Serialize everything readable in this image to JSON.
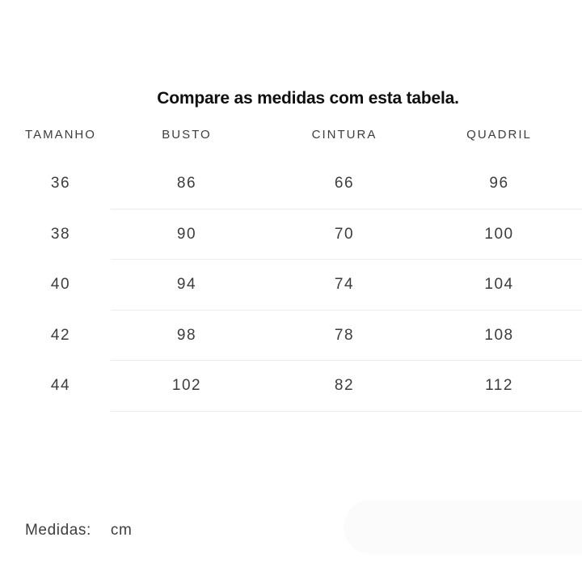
{
  "page": {
    "title": "Compare as medidas com esta tabela."
  },
  "size_table": {
    "columns": [
      "TAMANHO",
      "BUSTO",
      "CINTURA",
      "QUADRIL"
    ],
    "rows": [
      [
        "36",
        "86",
        "66",
        "96"
      ],
      [
        "38",
        "90",
        "70",
        "100"
      ],
      [
        "40",
        "94",
        "74",
        "104"
      ],
      [
        "42",
        "98",
        "78",
        "108"
      ],
      [
        "44",
        "102",
        "82",
        "112"
      ]
    ]
  },
  "footer": {
    "label": "Medidas:",
    "unit": "cm"
  },
  "colors": {
    "title": "#0f0f0f",
    "text": "#3d3d3d",
    "divider": "#ececec",
    "pill": "#fbfbfb",
    "background": "#ffffff"
  }
}
